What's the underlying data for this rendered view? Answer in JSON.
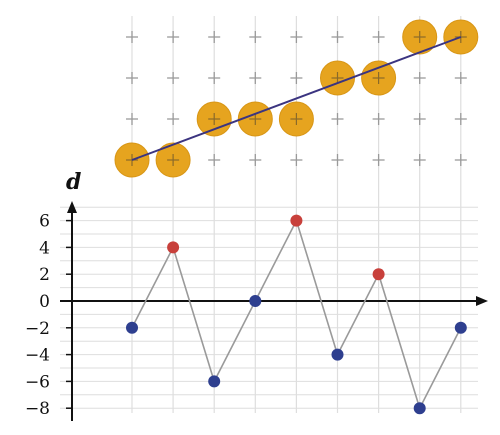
{
  "colors": {
    "grid": "#dedede",
    "plus_marks": "#9a9a9a",
    "circle_fill": "#e6a41f",
    "circle_stroke": "#d89616",
    "trend_line": "#3b3480",
    "zigzag_line": "#9a9a9a",
    "point_red": "#c8403b",
    "point_blue": "#2e3f8f",
    "axis": "#111111"
  },
  "top_panel": {
    "type": "grid-of-plus-marks-with-circles",
    "columns": 9,
    "rows": 4,
    "circle_rows_from_bottom": [
      0,
      0,
      1,
      1,
      1,
      2,
      2,
      3,
      3
    ]
  },
  "chart_data": {
    "type": "line",
    "ylabel": "d",
    "ylim": [
      -8.5,
      7.5
    ],
    "yticks": [
      -8,
      -6,
      -4,
      -2,
      0,
      2,
      4,
      6
    ],
    "ytick_labels": [
      "−8",
      "−6",
      "−4",
      "−2",
      "0",
      "2",
      "4",
      "6"
    ],
    "grid": true,
    "series": [
      {
        "values": [
          -2,
          4,
          -6,
          0,
          6,
          -4,
          2,
          -8,
          -2
        ],
        "point_colors": [
          "blue",
          "red",
          "blue",
          "blue",
          "red",
          "blue",
          "red",
          "blue",
          "blue"
        ]
      }
    ]
  }
}
